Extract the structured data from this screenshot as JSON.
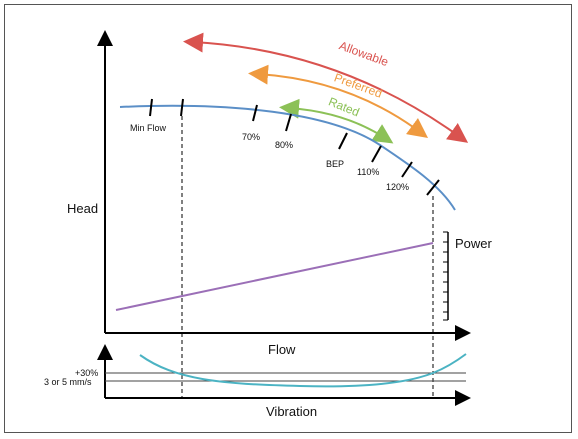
{
  "axes": {
    "head_label": "Head",
    "flow_label": "Flow",
    "power_label": "Power",
    "vibration_label": "Vibration"
  },
  "ranges": {
    "allowable": {
      "label": "Allowable",
      "color": "#d9534f"
    },
    "preferred": {
      "label": "Preferred",
      "color": "#ef9a3f"
    },
    "rated": {
      "label": "Rated",
      "color": "#8cc157"
    }
  },
  "curve_points": {
    "min_flow": "Min Flow",
    "p70": "70%",
    "p80": "80%",
    "bep": "BEP",
    "p110": "110%",
    "p120": "120%"
  },
  "vibration_levels": {
    "upper": "+30%",
    "lower": "3 or 5 mm/s"
  },
  "colors": {
    "head_curve": "#5b8fc7",
    "power_line": "#9b6fb7",
    "vibration_curve": "#4bb3c3",
    "axis": "#000000"
  }
}
